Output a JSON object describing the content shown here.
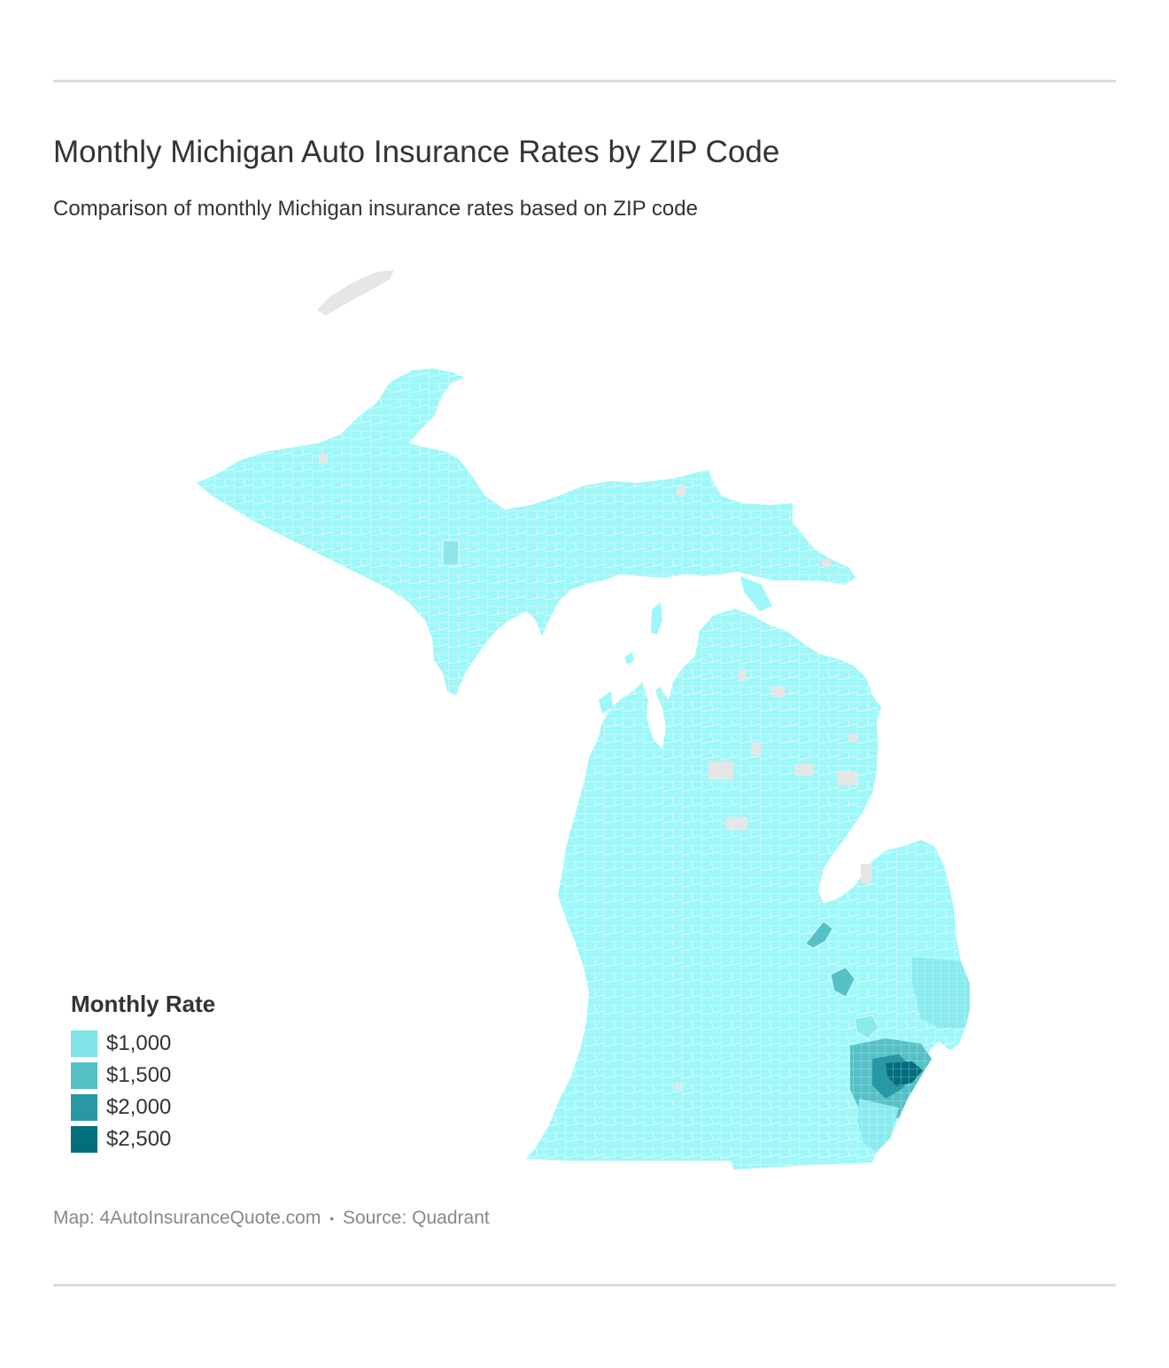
{
  "header": {
    "title": "Monthly Michigan Auto Insurance Rates by ZIP Code",
    "subtitle": "Comparison of monthly Michigan insurance rates based on ZIP code"
  },
  "legend": {
    "title": "Monthly Rate",
    "items": [
      {
        "label": "$1,000",
        "color": "#7fe3e8"
      },
      {
        "label": "$1,500",
        "color": "#55c0c6"
      },
      {
        "label": "$2,000",
        "color": "#2a98a2"
      },
      {
        "label": "$2,500",
        "color": "#046d7e"
      }
    ]
  },
  "map": {
    "region": "Michigan",
    "base_color": "#9ef7f9",
    "mid_color": "#8aeaee",
    "no_data_color": "#e6e6e6",
    "boundary_color": "#ffffff"
  },
  "footer": {
    "map_credit": "Map: 4AutoInsuranceQuote.com",
    "separator": "•",
    "source": "Source: Quadrant"
  }
}
